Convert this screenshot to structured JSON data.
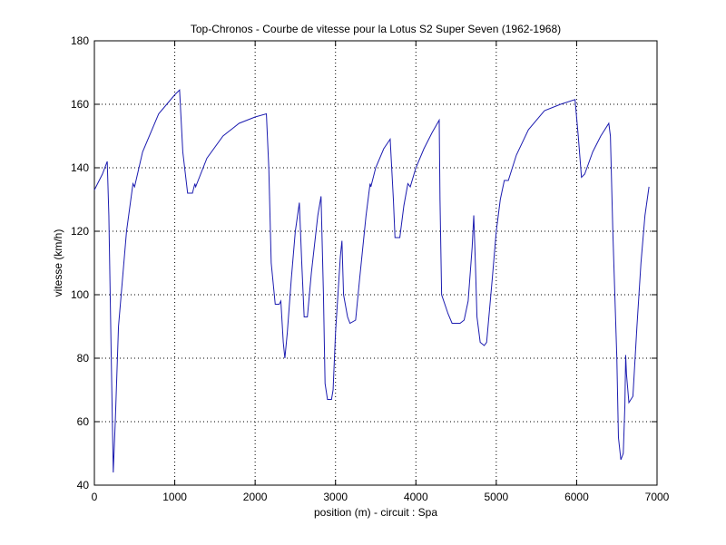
{
  "chart_data": {
    "type": "line",
    "title": "Top-Chronos - Courbe de vitesse pour la Lotus S2 Super Seven (1962-1968)",
    "x_label": "position (m) - circuit : Spa",
    "y_label": "vitesse (km/h)",
    "xlim": [
      0,
      7000
    ],
    "xticks": [
      0,
      1000,
      2000,
      3000,
      4000,
      5000,
      6000,
      7000
    ],
    "ylim": [
      40,
      180
    ],
    "yticks": [
      40,
      60,
      80,
      100,
      120,
      140,
      160,
      180
    ],
    "grid": true,
    "series": [
      {
        "color": "#1c1cb0",
        "x": [
          0,
          100,
          160,
          180,
          210,
          235,
          260,
          300,
          400,
          480,
          500,
          600,
          800,
          1000,
          1060,
          1100,
          1160,
          1220,
          1250,
          1260,
          1400,
          1600,
          1800,
          2000,
          2140,
          2170,
          2200,
          2250,
          2300,
          2320,
          2350,
          2370,
          2400,
          2450,
          2500,
          2550,
          2580,
          2610,
          2650,
          2700,
          2780,
          2820,
          2850,
          2870,
          2900,
          2950,
          2970,
          3000,
          3060,
          3080,
          3100,
          3150,
          3180,
          3250,
          3300,
          3380,
          3430,
          3440,
          3500,
          3600,
          3680,
          3720,
          3740,
          3800,
          3850,
          3900,
          3930,
          4000,
          4100,
          4200,
          4290,
          4300,
          4320,
          4400,
          4450,
          4550,
          4600,
          4650,
          4700,
          4720,
          4740,
          4760,
          4800,
          4850,
          4880,
          4950,
          5000,
          5050,
          5100,
          5150,
          5250,
          5400,
          5600,
          5800,
          5980,
          6020,
          6060,
          6100,
          6200,
          6300,
          6400,
          6420,
          6450,
          6500,
          6520,
          6550,
          6580,
          6600,
          6610,
          6620,
          6650,
          6700,
          6750,
          6800,
          6850,
          6900
        ],
        "values": [
          133,
          138,
          142,
          125,
          80,
          44,
          60,
          90,
          120,
          135,
          134,
          145,
          157,
          163,
          164.5,
          145,
          132,
          132,
          135,
          134,
          143,
          150,
          154,
          156,
          157,
          140,
          110,
          97,
          97,
          98,
          85,
          80,
          88,
          105,
          120,
          129,
          110,
          93,
          93,
          107,
          125,
          131,
          100,
          72,
          67,
          67,
          70,
          88,
          112,
          117,
          100,
          93,
          91,
          92,
          105,
          125,
          135,
          134,
          140,
          146,
          149,
          130,
          118,
          118,
          128,
          135,
          134,
          140,
          146,
          151,
          155,
          130,
          100,
          94,
          91,
          91,
          92,
          98,
          115,
          125,
          110,
          93,
          85,
          84,
          85,
          105,
          120,
          130,
          136,
          136,
          144,
          152,
          158,
          160,
          161.5,
          150,
          137,
          138,
          145,
          150,
          154,
          150,
          120,
          80,
          55,
          48,
          50,
          65,
          81,
          75,
          66,
          68,
          90,
          110,
          125,
          134
        ]
      }
    ]
  }
}
